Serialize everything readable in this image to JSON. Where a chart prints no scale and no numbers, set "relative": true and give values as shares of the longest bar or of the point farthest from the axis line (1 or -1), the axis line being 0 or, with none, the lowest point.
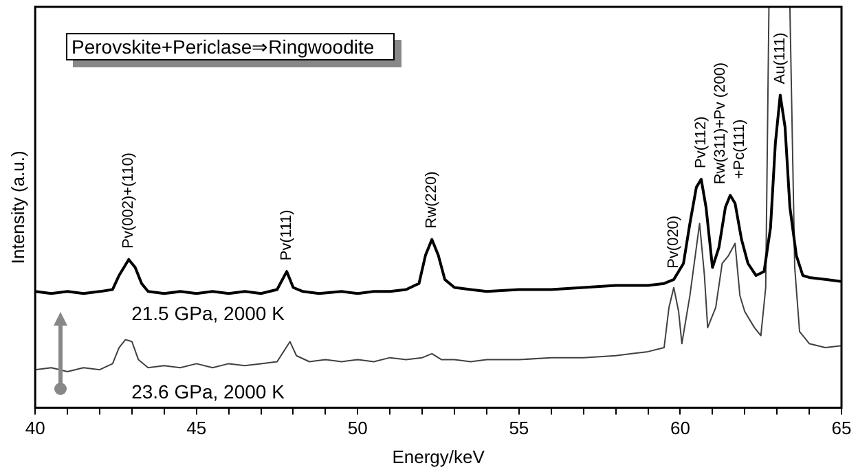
{
  "chart_data": {
    "type": "line",
    "title": "Perovskite+Periclase⇒Ringwoodite",
    "xlabel": "Energy/keV",
    "ylabel": "Intensity (a.u.)",
    "relative": true,
    "xlim": [
      40,
      65
    ],
    "xticks": [
      40,
      {
        "value": 41,
        "label": null
      },
      {
        "value": 42,
        "label": null
      },
      {
        "value": 43,
        "label": null
      },
      {
        "value": 44,
        "label": null
      },
      45,
      {
        "value": 46,
        "label": null
      },
      {
        "value": 47,
        "label": null
      },
      {
        "value": 48,
        "label": null
      },
      {
        "value": 49,
        "label": null
      },
      50,
      {
        "value": 51,
        "label": null
      },
      {
        "value": 52,
        "label": null
      },
      {
        "value": 53,
        "label": null
      },
      {
        "value": 54,
        "label": null
      },
      55,
      {
        "value": 56,
        "label": null
      },
      {
        "value": 57,
        "label": null
      },
      {
        "value": 58,
        "label": null
      },
      {
        "value": 59,
        "label": null
      },
      60,
      {
        "value": 61,
        "label": null
      },
      {
        "value": 62,
        "label": null
      },
      {
        "value": 63,
        "label": null
      },
      {
        "value": 64,
        "label": null
      },
      65
    ],
    "grid": false,
    "legend": false,
    "marker": "none",
    "line_style": "solid",
    "series": [
      {
        "name": "21.5 GPa, 2000 K",
        "color": "#000000",
        "x": [
          40.0,
          40.5,
          41,
          41.5,
          42,
          42.4,
          42.6,
          42.9,
          43.1,
          43.3,
          43.5,
          44,
          44.5,
          45,
          45.5,
          46,
          46.5,
          47,
          47.5,
          47.8,
          48.0,
          48.3,
          48.8,
          49.5,
          50,
          50.5,
          51,
          51.5,
          51.9,
          52.1,
          52.3,
          52.5,
          52.7,
          53,
          53.5,
          54,
          55,
          56,
          57,
          58,
          59,
          59.5,
          59.8,
          60.1,
          60.3,
          60.5,
          60.65,
          60.8,
          61.0,
          61.2,
          61.4,
          61.55,
          61.7,
          61.9,
          62.1,
          62.35,
          62.6,
          62.8,
          62.95,
          63.1,
          63.25,
          63.4,
          63.6,
          63.8,
          64,
          64.5,
          65
        ],
        "values": [
          0.29,
          0.285,
          0.29,
          0.285,
          0.29,
          0.295,
          0.33,
          0.37,
          0.35,
          0.31,
          0.29,
          0.285,
          0.29,
          0.285,
          0.29,
          0.285,
          0.29,
          0.285,
          0.295,
          0.34,
          0.3,
          0.29,
          0.285,
          0.29,
          0.285,
          0.29,
          0.29,
          0.295,
          0.31,
          0.38,
          0.42,
          0.38,
          0.32,
          0.3,
          0.295,
          0.29,
          0.295,
          0.295,
          0.3,
          0.305,
          0.305,
          0.31,
          0.32,
          0.36,
          0.46,
          0.55,
          0.57,
          0.5,
          0.35,
          0.4,
          0.5,
          0.53,
          0.51,
          0.42,
          0.36,
          0.33,
          0.34,
          0.45,
          0.66,
          0.78,
          0.7,
          0.5,
          0.38,
          0.33,
          0.325,
          0.32,
          0.315
        ]
      },
      {
        "name": "23.6 GPa, 2000 K",
        "color": "#404040",
        "x": [
          40,
          40.5,
          41,
          41.5,
          42,
          42.4,
          42.6,
          42.8,
          43.0,
          43.2,
          43.5,
          44,
          44.5,
          45,
          45.5,
          46,
          46.5,
          47,
          47.5,
          47.9,
          48.1,
          48.5,
          49,
          49.5,
          50,
          50.5,
          51,
          51.5,
          52,
          52.3,
          52.6,
          53,
          53.5,
          54,
          55,
          56,
          57,
          58,
          58.5,
          59,
          59.5,
          59.65,
          59.8,
          59.95,
          60.05,
          60.3,
          60.5,
          60.6,
          60.75,
          60.85,
          61.1,
          61.3,
          61.5,
          61.7,
          61.85,
          62.0,
          62.3,
          62.5,
          62.65,
          62.75,
          63.05,
          63.4,
          63.55,
          63.7,
          64,
          64.5,
          65
        ],
        "values": [
          0.095,
          0.1,
          0.09,
          0.1,
          0.095,
          0.11,
          0.15,
          0.17,
          0.165,
          0.12,
          0.1,
          0.105,
          0.1,
          0.11,
          0.1,
          0.11,
          0.105,
          0.11,
          0.115,
          0.165,
          0.13,
          0.115,
          0.12,
          0.115,
          0.12,
          0.115,
          0.125,
          0.12,
          0.125,
          0.135,
          0.12,
          0.12,
          0.115,
          0.12,
          0.12,
          0.125,
          0.125,
          0.13,
          0.135,
          0.14,
          0.15,
          0.25,
          0.3,
          0.24,
          0.16,
          0.28,
          0.4,
          0.46,
          0.33,
          0.2,
          0.25,
          0.36,
          0.38,
          0.41,
          0.28,
          0.24,
          0.2,
          0.18,
          0.3,
          1,
          null,
          1,
          0.35,
          0.19,
          0.16,
          0.15,
          0.155
        ]
      }
    ],
    "annotations": [
      {
        "text": "Pv(002)+(110)",
        "x": 42.9,
        "y": 0.37
      },
      {
        "text": "Pv(111)",
        "x": 47.8,
        "y": 0.34
      },
      {
        "text": "Rw(220)",
        "x": 52.3,
        "y": 0.42
      },
      {
        "text": "Pv(020)",
        "x": 59.8,
        "y": 0.32
      },
      {
        "text": "Pv(112)",
        "x": 60.65,
        "y": 0.57
      },
      {
        "text": "Rw(311)+Pv (200)\n+Pc(111)",
        "x": 61.55,
        "y": 0.53
      },
      {
        "text": "Au(111)",
        "x": 63.1,
        "y": 0.78
      }
    ]
  }
}
